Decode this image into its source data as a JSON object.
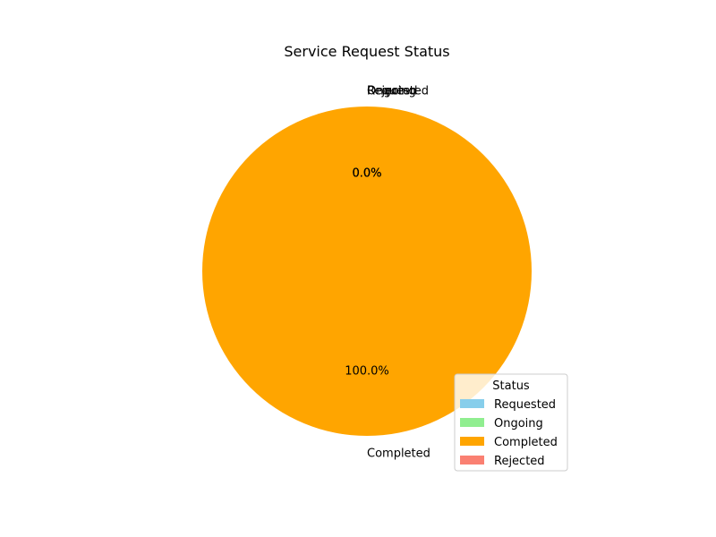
{
  "chart_data": {
    "type": "pie",
    "title": "Service Request Status",
    "categories": [
      "Requested",
      "Ongoing",
      "Completed",
      "Rejected"
    ],
    "values": [
      0,
      0,
      100,
      0
    ],
    "percent_labels": [
      "0.0%",
      "0.0%",
      "100.0%",
      "0.0%"
    ],
    "colors": [
      "#87CEEB",
      "#90EE90",
      "#FFA500",
      "#FA8072"
    ],
    "start_angle_deg": 90,
    "legend": {
      "title": "Status",
      "placement": "lower-right",
      "entries": [
        "Requested",
        "Ongoing",
        "Completed",
        "Rejected"
      ]
    }
  }
}
